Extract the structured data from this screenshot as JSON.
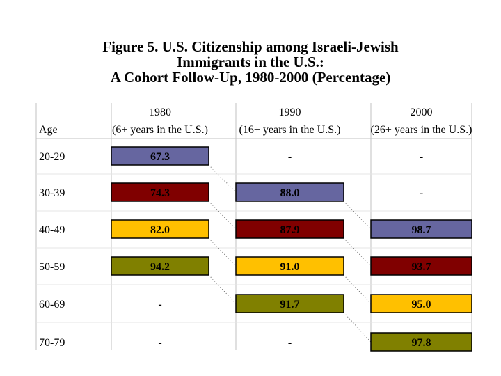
{
  "title": {
    "line1": "Figure 5. U.S. Citizenship among Israeli-Jewish",
    "line2": "Immigrants in the U.S.:",
    "line3": "A Cohort Follow-Up, 1980-2000 (Percentage)"
  },
  "colors": {
    "cohort_20_29": "#6666a0",
    "cohort_30_39": "#800000",
    "cohort_40_49": "#ffc000",
    "cohort_50_59": "#808000"
  },
  "chart_data": {
    "type": "table",
    "title": "Figure 5. U.S. Citizenship among Israeli-Jewish Immigrants in the U.S.: A Cohort Follow-Up, 1980-2000 (Percentage)",
    "row_header": "Age",
    "columns": [
      {
        "year": "1980",
        "sub": "(6+ years in the U.S.)"
      },
      {
        "year": "1990",
        "sub": "(16+ years in the U.S.)"
      },
      {
        "year": "2000",
        "sub": "(26+ years in the U.S.)"
      }
    ],
    "rows": [
      {
        "age": "20-29",
        "cells": [
          {
            "text": "67.3",
            "value": 67.3,
            "cohort": "cohort_20_29"
          },
          {
            "text": "-",
            "value": null,
            "cohort": null
          },
          {
            "text": "-",
            "value": null,
            "cohort": null
          }
        ]
      },
      {
        "age": "30-39",
        "cells": [
          {
            "text": "74.3",
            "value": 74.3,
            "cohort": "cohort_30_39"
          },
          {
            "text": "88.0",
            "value": 88.0,
            "cohort": "cohort_20_29"
          },
          {
            "text": "-",
            "value": null,
            "cohort": null
          }
        ]
      },
      {
        "age": "40-49",
        "cells": [
          {
            "text": "82.0",
            "value": 82.0,
            "cohort": "cohort_40_49"
          },
          {
            "text": "87.9",
            "value": 87.9,
            "cohort": "cohort_30_39"
          },
          {
            "text": "98.7",
            "value": 98.7,
            "cohort": "cohort_20_29"
          }
        ]
      },
      {
        "age": "50-59",
        "cells": [
          {
            "text": "94.2",
            "value": 94.2,
            "cohort": "cohort_50_59"
          },
          {
            "text": "91.0",
            "value": 91.0,
            "cohort": "cohort_40_49"
          },
          {
            "text": "93.7",
            "value": 93.7,
            "cohort": "cohort_30_39"
          }
        ]
      },
      {
        "age": "60-69",
        "cells": [
          {
            "text": "-",
            "value": null,
            "cohort": null
          },
          {
            "text": "91.7",
            "value": 91.7,
            "cohort": "cohort_50_59"
          },
          {
            "text": "95.0",
            "value": 95.0,
            "cohort": "cohort_40_49"
          }
        ]
      },
      {
        "age": "70-79",
        "cells": [
          {
            "text": "-",
            "value": null,
            "cohort": null
          },
          {
            "text": "-",
            "value": null,
            "cohort": null
          },
          {
            "text": "97.8",
            "value": 97.8,
            "cohort": "cohort_50_59"
          }
        ]
      }
    ]
  }
}
